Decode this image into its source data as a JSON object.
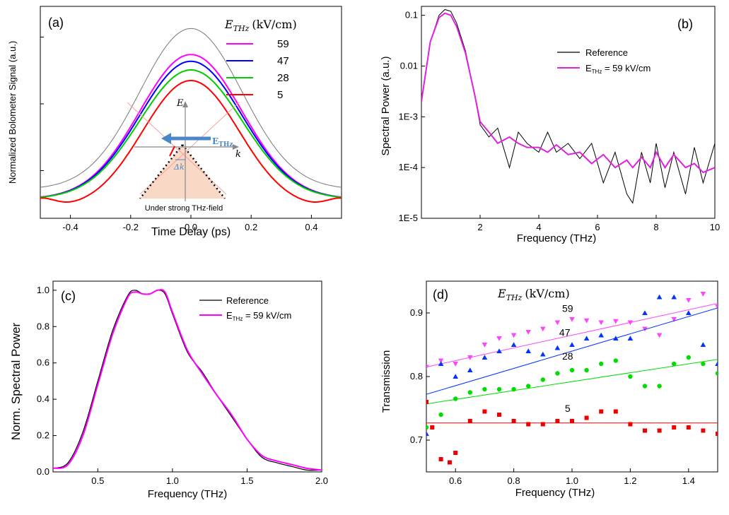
{
  "chart_data": [
    {
      "panel": "(a)",
      "type": "line",
      "xlabel": "Time Delay (ps)",
      "ylabel": "Normalized Bolometer Signal (a.u.)",
      "xlim": [
        -0.5,
        0.5
      ],
      "ylim": [
        0,
        1
      ],
      "xticks": [
        "-0.4",
        "-0.2",
        "0.0",
        "0.2",
        "0.4"
      ],
      "legend_title": "E_THz (kV/cm)",
      "legend_title_main": "E",
      "legend_title_sub": "THz",
      "legend_title_unit": "(kV/cm)",
      "legend_position": "top-right",
      "grid": false,
      "series": [
        {
          "name": "",
          "color": "#777777",
          "peak": 0.935,
          "base": 0.1,
          "x": [
            -0.5,
            -0.4,
            -0.3,
            -0.2,
            -0.1,
            0.0,
            0.1,
            0.2,
            0.3,
            0.4,
            0.5
          ],
          "y": [
            0.0,
            0.19,
            0.39,
            0.62,
            0.84,
            0.935,
            0.84,
            0.62,
            0.39,
            0.19,
            0.1
          ]
        },
        {
          "name": "59",
          "color": "#ff00ff",
          "peak": 0.8,
          "base": 0.05,
          "x": [
            -0.5,
            -0.4,
            -0.3,
            -0.2,
            -0.1,
            0.0,
            0.1,
            0.2,
            0.3,
            0.4,
            0.5
          ],
          "y": [
            0.05,
            0.12,
            0.3,
            0.52,
            0.72,
            0.8,
            0.72,
            0.52,
            0.3,
            0.12,
            0.05
          ]
        },
        {
          "name": "47",
          "color": "#0000ff",
          "peak": 0.765,
          "base": 0.05,
          "x": [
            -0.5,
            -0.4,
            -0.3,
            -0.2,
            -0.1,
            0.0,
            0.1,
            0.2,
            0.3,
            0.4,
            0.5
          ],
          "y": [
            0.05,
            0.11,
            0.28,
            0.5,
            0.69,
            0.765,
            0.69,
            0.5,
            0.28,
            0.11,
            0.05
          ]
        },
        {
          "name": "28",
          "color": "#00cc00",
          "peak": 0.72,
          "base": 0.05,
          "x": [
            -0.5,
            -0.4,
            -0.3,
            -0.2,
            -0.1,
            0.0,
            0.1,
            0.2,
            0.3,
            0.4,
            0.5
          ],
          "y": [
            0.05,
            0.1,
            0.26,
            0.46,
            0.65,
            0.72,
            0.65,
            0.46,
            0.26,
            0.1,
            0.05
          ]
        },
        {
          "name": "5",
          "color": "#ff0000",
          "peak": 0.665,
          "base": 0.0,
          "x": [
            -0.5,
            -0.4,
            -0.3,
            -0.2,
            -0.1,
            0.0,
            0.1,
            0.2,
            0.3,
            0.4,
            0.5
          ],
          "y": [
            0.05,
            0.0,
            0.17,
            0.4,
            0.6,
            0.665,
            0.6,
            0.4,
            0.17,
            0.0,
            0.05
          ]
        }
      ],
      "inset": {
        "axis_e": "E",
        "axis_k": "k",
        "field_main": "E",
        "field_sub": "THz",
        "delta": "Δk",
        "caption": "Under strong THz-field"
      }
    },
    {
      "panel": "(b)",
      "type": "line",
      "xlabel": "Frequency (THz)",
      "ylabel": "Spectral Power (a.u.)",
      "xlim": [
        0,
        10
      ],
      "ylim": [
        1e-05,
        0.15
      ],
      "yscale": "log",
      "xticks": [
        "2",
        "4",
        "6",
        "8",
        "10"
      ],
      "yticks": [
        "1E-5",
        "1E-4",
        "1E-3",
        "0.01",
        "0.1"
      ],
      "legend_position": "top-right",
      "grid": false,
      "series": [
        {
          "name": "Reference",
          "color": "#000000",
          "x": [
            0.0,
            0.3,
            0.6,
            0.8,
            1.0,
            1.2,
            1.5,
            1.8,
            2.0,
            2.3,
            2.6,
            3.0,
            3.3,
            3.6,
            4.0,
            4.3,
            4.6,
            5.0,
            5.4,
            5.8,
            6.2,
            6.6,
            7.0,
            7.2,
            7.5,
            7.8,
            8.0,
            8.3,
            8.6,
            9.0,
            9.3,
            9.6,
            10.0
          ],
          "y": [
            0.002,
            0.03,
            0.1,
            0.13,
            0.12,
            0.07,
            0.02,
            0.003,
            0.0007,
            0.0004,
            0.0006,
            0.0001,
            0.0005,
            0.0003,
            0.0002,
            0.0005,
            0.0002,
            0.0003,
            0.00015,
            0.0003,
            5e-05,
            0.0002,
            3e-05,
            2e-05,
            0.0002,
            5e-05,
            0.0003,
            4e-05,
            0.0002,
            3e-05,
            0.00025,
            5e-05,
            0.0003
          ]
        },
        {
          "name": "E_THz= 59 kV/cm",
          "color": "#e020e0",
          "label_main": "E",
          "label_sub": "THz",
          "label_rest": " = 59 kV/cm",
          "x": [
            0.0,
            0.3,
            0.6,
            0.8,
            1.0,
            1.2,
            1.5,
            1.8,
            2.0,
            2.3,
            2.6,
            3.0,
            3.3,
            3.6,
            4.0,
            4.3,
            4.6,
            5.0,
            5.4,
            5.8,
            6.2,
            6.6,
            7.0,
            7.2,
            7.5,
            7.8,
            8.0,
            8.3,
            8.6,
            9.0,
            9.3,
            9.6,
            10.0
          ],
          "y": [
            0.002,
            0.03,
            0.09,
            0.11,
            0.1,
            0.06,
            0.018,
            0.003,
            0.0008,
            0.0005,
            0.0003,
            0.0004,
            0.0003,
            0.00025,
            0.00025,
            0.0002,
            0.00028,
            0.00018,
            0.0002,
            0.00012,
            0.00018,
            0.0001,
            0.00014,
            0.0001,
            0.00016,
            0.0001,
            0.0002,
            0.0001,
            0.00018,
            0.0001,
            0.00012,
            8e-05,
            0.0001
          ]
        }
      ]
    },
    {
      "panel": "(c)",
      "type": "line",
      "xlabel": "Frequency (THz)",
      "ylabel": "Norm. Spectral Power",
      "xlim": [
        0.2,
        2.0
      ],
      "ylim": [
        0.0,
        1.05
      ],
      "xticks": [
        "0.5",
        "1.0",
        "1.5",
        "2.0"
      ],
      "yticks": [
        "0.0",
        "0.2",
        "0.4",
        "0.6",
        "0.8",
        "1.0"
      ],
      "legend_position": "top-right",
      "grid": false,
      "series": [
        {
          "name": "Reference",
          "color": "#000000",
          "x": [
            0.2,
            0.3,
            0.4,
            0.5,
            0.6,
            0.7,
            0.75,
            0.8,
            0.85,
            0.9,
            0.95,
            1.0,
            1.1,
            1.2,
            1.3,
            1.4,
            1.5,
            1.6,
            1.7,
            1.8,
            1.9,
            2.0
          ],
          "y": [
            0.02,
            0.05,
            0.22,
            0.5,
            0.78,
            0.97,
            1.0,
            0.98,
            0.98,
            1.0,
            0.98,
            0.87,
            0.66,
            0.55,
            0.42,
            0.3,
            0.18,
            0.08,
            0.05,
            0.03,
            0.01,
            0.01
          ]
        },
        {
          "name": "E_THz= 59 kV/cm",
          "color": "#ff00ff",
          "label_main": "E",
          "label_sub": "THz",
          "label_rest": " = 59 kV/cm",
          "x": [
            0.2,
            0.3,
            0.4,
            0.5,
            0.6,
            0.7,
            0.75,
            0.8,
            0.85,
            0.9,
            0.95,
            1.0,
            1.1,
            1.2,
            1.3,
            1.4,
            1.5,
            1.6,
            1.7,
            1.8,
            1.9,
            2.0
          ],
          "y": [
            0.02,
            0.04,
            0.2,
            0.48,
            0.76,
            0.96,
            0.99,
            0.98,
            0.98,
            1.0,
            0.99,
            0.88,
            0.67,
            0.54,
            0.42,
            0.31,
            0.18,
            0.09,
            0.06,
            0.04,
            0.02,
            0.01
          ]
        }
      ]
    },
    {
      "panel": "(d)",
      "type": "scatter",
      "xlabel": "Frequency (THz)",
      "ylabel": "Transmission",
      "xlim": [
        0.5,
        1.5
      ],
      "ylim": [
        0.65,
        0.95
      ],
      "xticks": [
        "0.6",
        "0.8",
        "1.0",
        "1.2",
        "1.4"
      ],
      "yticks": [
        "0.7",
        "0.8",
        "0.9"
      ],
      "legend_title_main": "E",
      "legend_title_sub": "THz",
      "legend_title_unit": "(kV/cm)",
      "grid": false,
      "series": [
        {
          "name": "59",
          "color": "#ff44ff",
          "marker": "triangle-down",
          "fit": [
            0.815,
            0.915
          ],
          "x": [
            0.5,
            0.55,
            0.6,
            0.65,
            0.7,
            0.75,
            0.8,
            0.85,
            0.9,
            0.95,
            1.0,
            1.05,
            1.1,
            1.15,
            1.2,
            1.25,
            1.3,
            1.35,
            1.4,
            1.45,
            1.5
          ],
          "y": [
            0.815,
            0.825,
            0.82,
            0.83,
            0.85,
            0.86,
            0.865,
            0.87,
            0.875,
            0.885,
            0.89,
            0.888,
            0.885,
            0.887,
            0.885,
            0.875,
            0.865,
            0.89,
            0.92,
            0.93,
            0.91
          ]
        },
        {
          "name": "47",
          "color": "#0033ff",
          "marker": "triangle-up",
          "fit": [
            0.772,
            0.908
          ],
          "x": [
            0.5,
            0.55,
            0.6,
            0.65,
            0.7,
            0.75,
            0.8,
            0.85,
            0.9,
            0.95,
            1.0,
            1.05,
            1.1,
            1.15,
            1.2,
            1.25,
            1.3,
            1.35,
            1.4,
            1.45,
            1.5
          ],
          "y": [
            0.71,
            0.82,
            0.8,
            0.81,
            0.83,
            0.84,
            0.85,
            0.84,
            0.835,
            0.845,
            0.85,
            0.86,
            0.865,
            0.86,
            0.86,
            0.9,
            0.925,
            0.925,
            0.9,
            0.85,
            0.82
          ]
        },
        {
          "name": "28",
          "color": "#00dd00",
          "marker": "circle",
          "fit": [
            0.757,
            0.827
          ],
          "x": [
            0.5,
            0.55,
            0.6,
            0.65,
            0.7,
            0.75,
            0.8,
            0.85,
            0.9,
            0.95,
            1.0,
            1.05,
            1.1,
            1.15,
            1.2,
            1.25,
            1.3,
            1.35,
            1.4,
            1.45,
            1.5
          ],
          "y": [
            0.72,
            0.74,
            0.765,
            0.775,
            0.78,
            0.78,
            0.78,
            0.785,
            0.795,
            0.805,
            0.81,
            0.81,
            0.82,
            0.825,
            0.8,
            0.785,
            0.785,
            0.82,
            0.83,
            0.82,
            0.805
          ]
        },
        {
          "name": "5",
          "color": "#ee0000",
          "marker": "square",
          "fit": [
            0.727,
            0.727
          ],
          "x": [
            0.5,
            0.52,
            0.55,
            0.58,
            0.6,
            0.65,
            0.7,
            0.75,
            0.8,
            0.85,
            0.9,
            0.95,
            1.0,
            1.05,
            1.1,
            1.15,
            1.2,
            1.25,
            1.3,
            1.35,
            1.4,
            1.45,
            1.5
          ],
          "y": [
            0.76,
            0.72,
            0.67,
            0.665,
            0.68,
            0.73,
            0.745,
            0.74,
            0.73,
            0.725,
            0.725,
            0.73,
            0.73,
            0.735,
            0.745,
            0.745,
            0.725,
            0.715,
            0.715,
            0.72,
            0.72,
            0.715,
            0.71
          ]
        }
      ]
    }
  ]
}
